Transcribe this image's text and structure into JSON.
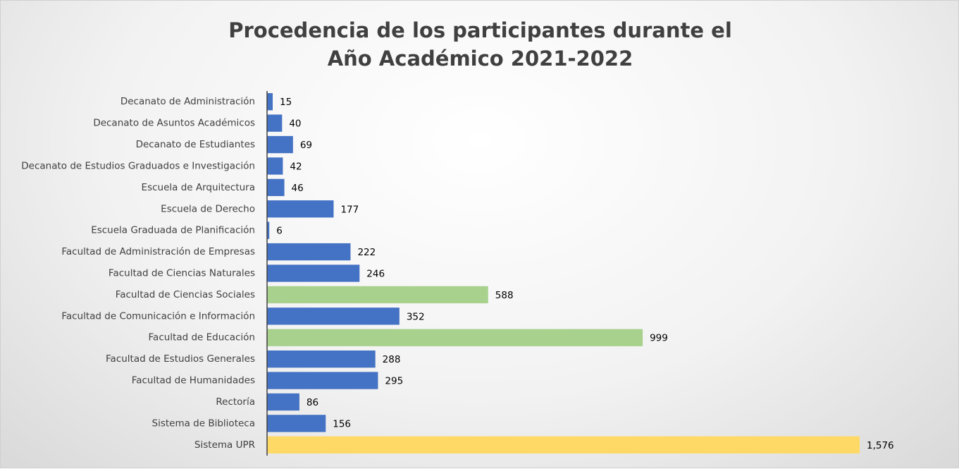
{
  "chart_data": {
    "type": "barh",
    "title": "Procedencia de los participantes durante el\nAño Académico 2021-2022",
    "categories": [
      "Decanato de Administración",
      "Decanato de Asuntos Académicos",
      "Decanato de Estudiantes",
      "Decanato de Estudios Graduados e Investigación",
      "Escuela de Arquitectura",
      "Escuela de Derecho",
      "Escuela Graduada de Planificación",
      "Facultad de Administración de Empresas",
      "Facultad de Ciencias Naturales",
      "Facultad de Ciencias Sociales",
      "Facultad de Comunicación e Información",
      "Facultad de Educación",
      "Facultad de Estudios Generales",
      "Facultad de Humanidades",
      "Rectoría",
      "Sistema de Biblioteca",
      "Sistema UPR"
    ],
    "values": [
      15,
      40,
      69,
      42,
      46,
      177,
      6,
      222,
      246,
      588,
      352,
      999,
      288,
      295,
      86,
      156,
      1576
    ],
    "value_labels": [
      "15",
      "40",
      "69",
      "42",
      "46",
      "177",
      "6",
      "222",
      "246",
      "588",
      "352",
      "999",
      "288",
      "295",
      "86",
      "156",
      "1,576"
    ],
    "colors": [
      "#4472c4",
      "#4472c4",
      "#4472c4",
      "#4472c4",
      "#4472c4",
      "#4472c4",
      "#4472c4",
      "#4472c4",
      "#4472c4",
      "#a9d18e",
      "#4472c4",
      "#a9d18e",
      "#4472c4",
      "#4472c4",
      "#4472c4",
      "#4472c4",
      "#ffd966"
    ]
  }
}
